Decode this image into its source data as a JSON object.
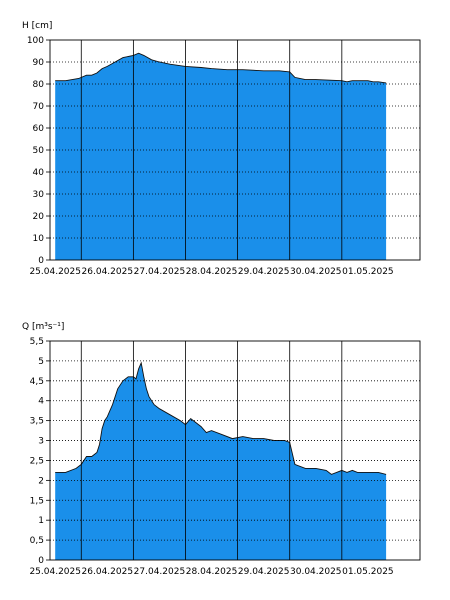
{
  "colors": {
    "fill": "#1A8FEA",
    "line": "#111111",
    "grid": "#000000",
    "background": "#ffffff"
  },
  "chart_data": [
    {
      "type": "area",
      "ylabel": "H [cm]",
      "ylim": [
        0,
        100
      ],
      "yticks": [
        0,
        10,
        20,
        30,
        40,
        50,
        60,
        70,
        80,
        90,
        100
      ],
      "ytick_labels": [
        "0",
        "10",
        "20",
        "30",
        "40",
        "50",
        "60",
        "70",
        "80",
        "90",
        "100"
      ],
      "xlim": [
        -0.1,
        7.0
      ],
      "xticks": [
        0,
        1,
        2,
        3,
        4,
        5,
        6
      ],
      "xtick_labels": [
        "25.04.2025",
        "26.04.2025",
        "27.04.2025",
        "28.04.2025",
        "29.04.2025",
        "30.04.2025",
        "01.05.2025"
      ],
      "grid": "vertical solid at day boundaries, horizontal dotted",
      "series": [
        {
          "x": [
            0,
            0.2,
            0.45,
            0.6,
            0.7,
            0.8,
            0.9,
            1.0,
            1.15,
            1.3,
            1.5,
            1.6,
            1.7,
            1.85,
            2.0,
            2.2,
            2.5,
            2.8,
            3.0,
            3.3,
            3.6,
            4.0,
            4.3,
            4.5,
            4.6,
            4.8,
            5.0,
            5.5,
            5.6,
            5.7,
            5.8,
            6.0,
            6.1,
            6.2,
            6.35
          ],
          "values": [
            81.5,
            81.5,
            82.5,
            84,
            84,
            85,
            87,
            88,
            90,
            92,
            93,
            94,
            93,
            91,
            90,
            89,
            88,
            87.5,
            87,
            86.5,
            86.5,
            86,
            86,
            85.5,
            83,
            82,
            82,
            81.5,
            81,
            81.5,
            81.5,
            81.5,
            81,
            81,
            80.5
          ]
        }
      ]
    },
    {
      "type": "area",
      "ylabel": "Q [m³s⁻¹]",
      "ylim": [
        0,
        5.5
      ],
      "yticks": [
        0,
        0.5,
        1,
        1.5,
        2,
        2.5,
        3,
        3.5,
        4,
        4.5,
        5,
        5.5
      ],
      "ytick_labels": [
        "0",
        "0,5",
        "1",
        "1,5",
        "2",
        "2,5",
        "3",
        "3,5",
        "4",
        "4,5",
        "5",
        "5,5"
      ],
      "xlim": [
        -0.1,
        7.0
      ],
      "xticks": [
        0,
        1,
        2,
        3,
        4,
        5,
        6
      ],
      "xtick_labels": [
        "25.04.2025",
        "26.04.2025",
        "27.04.2025",
        "28.04.2025",
        "29.04.2025",
        "30.04.2025",
        "01.05.2025"
      ],
      "grid": "vertical solid at day boundaries, horizontal dotted",
      "series": [
        {
          "x": [
            0,
            0.2,
            0.4,
            0.5,
            0.6,
            0.7,
            0.8,
            0.85,
            0.9,
            0.95,
            1.0,
            1.1,
            1.2,
            1.3,
            1.4,
            1.5,
            1.55,
            1.6,
            1.65,
            1.7,
            1.75,
            1.8,
            1.9,
            2.0,
            2.2,
            2.4,
            2.5,
            2.6,
            2.7,
            2.8,
            2.9,
            3.0,
            3.2,
            3.4,
            3.6,
            3.8,
            4.0,
            4.2,
            4.4,
            4.5,
            4.6,
            4.8,
            5.0,
            5.2,
            5.3,
            5.4,
            5.5,
            5.6,
            5.7,
            5.8,
            6.0,
            6.2,
            6.35
          ],
          "values": [
            2.2,
            2.2,
            2.3,
            2.4,
            2.6,
            2.6,
            2.7,
            2.9,
            3.3,
            3.5,
            3.6,
            3.9,
            4.3,
            4.5,
            4.6,
            4.6,
            4.55,
            4.8,
            4.95,
            4.6,
            4.3,
            4.1,
            3.9,
            3.8,
            3.65,
            3.5,
            3.4,
            3.55,
            3.45,
            3.35,
            3.2,
            3.25,
            3.15,
            3.05,
            3.1,
            3.05,
            3.05,
            3.0,
            3.0,
            2.95,
            2.4,
            2.3,
            2.3,
            2.25,
            2.15,
            2.2,
            2.25,
            2.2,
            2.25,
            2.2,
            2.2,
            2.2,
            2.15
          ]
        }
      ]
    }
  ]
}
